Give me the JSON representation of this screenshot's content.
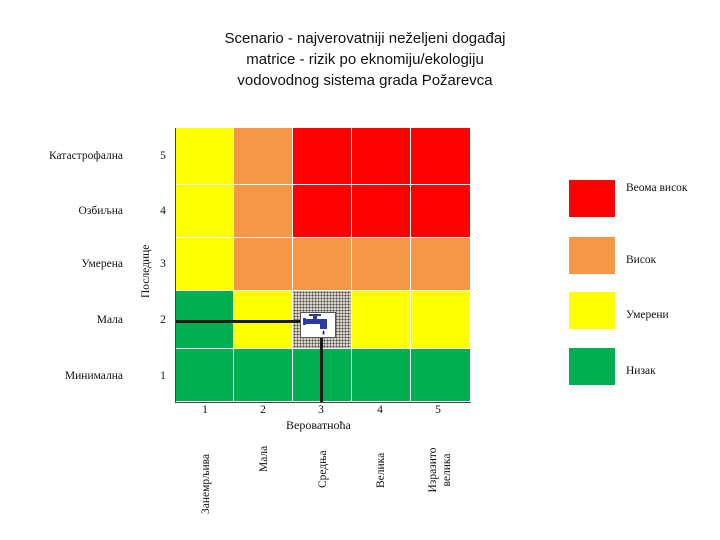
{
  "title": {
    "line1": "Scenario - najverovatniji neželjeni događaj",
    "line2": "matrice - rizik po eknomiju/ekologiju",
    "line3": "vodovodnog sistema grada Požarevca"
  },
  "y_axis": {
    "label": "Последице",
    "rows": [
      {
        "label": "Катастрофална",
        "num": "5"
      },
      {
        "label": "Озбиљна",
        "num": "4"
      },
      {
        "label": "Умерена",
        "num": "3"
      },
      {
        "label": "Мала",
        "num": "2"
      },
      {
        "label": "Минимална",
        "num": "1"
      }
    ]
  },
  "x_axis": {
    "label": "Вероватноћа",
    "cols": [
      {
        "num": "1",
        "label": "Занемрљива"
      },
      {
        "num": "2",
        "label": "Мала"
      },
      {
        "num": "3",
        "label": "Средња"
      },
      {
        "num": "4",
        "label": "Велика"
      },
      {
        "num": "5",
        "label": "Изразито велика"
      }
    ]
  },
  "matrix_levels": [
    [
      "medium",
      "high",
      "very-high",
      "very-high",
      "very-high"
    ],
    [
      "medium",
      "high",
      "very-high",
      "very-high",
      "very-high"
    ],
    [
      "medium",
      "high",
      "high",
      "high",
      "high"
    ],
    [
      "low",
      "medium",
      "selected",
      "medium",
      "medium"
    ],
    [
      "low",
      "low",
      "low",
      "low",
      "low"
    ]
  ],
  "colors": {
    "very-high": "#ff0000",
    "high": "#f79646",
    "medium": "#ffff00",
    "low": "#00b050"
  },
  "legend": [
    {
      "level": "very-high",
      "label": "Веома висок"
    },
    {
      "level": "high",
      "label": "Висок"
    },
    {
      "level": "medium",
      "label": "Умерени"
    },
    {
      "level": "low",
      "label": "Низак"
    }
  ],
  "marker": {
    "icon": "water-tap-icon",
    "probability": 3,
    "consequence": 2
  }
}
